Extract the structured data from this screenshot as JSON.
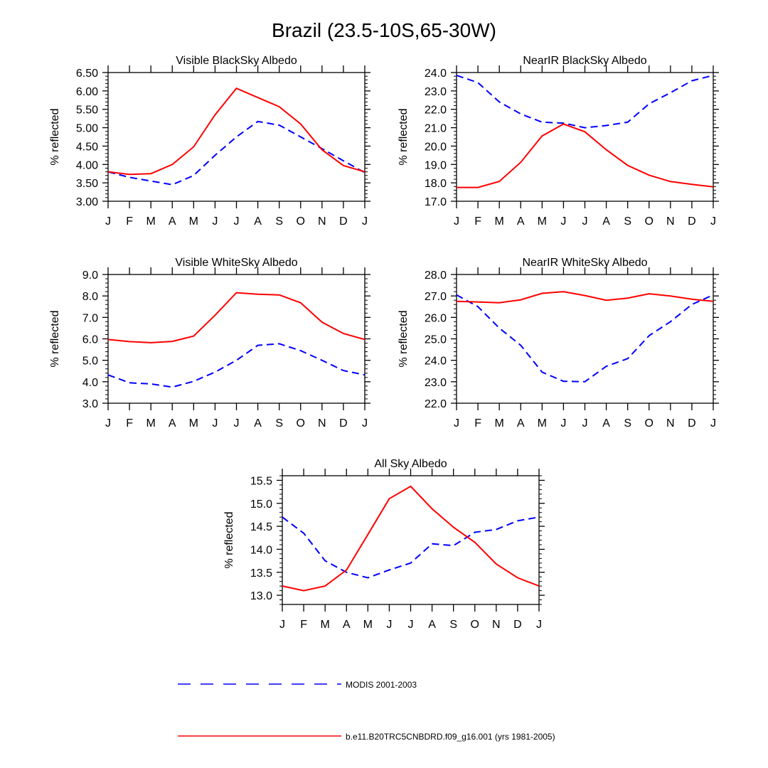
{
  "figure": {
    "title": "Brazil (23.5-10S,65-30W)",
    "legend": {
      "placement": "bottom",
      "entries": [
        {
          "label": "MODIS 2001-2003",
          "color": "#0000ff",
          "style": "dashed"
        },
        {
          "label": "b.e11.B20TRC5CNBDRD.f09_g16.001 (yrs 1981-2005)",
          "color": "#ff0000",
          "style": "solid"
        }
      ]
    }
  },
  "chart_data": [
    {
      "type": "line",
      "title": "Visible BlackSky Albedo",
      "xlabel": "",
      "ylabel": "% reflected",
      "categories": [
        "J",
        "F",
        "M",
        "A",
        "M",
        "J",
        "J",
        "A",
        "S",
        "O",
        "N",
        "D",
        "J"
      ],
      "ylim": [
        3.0,
        6.5
      ],
      "yticks": [
        "3.00",
        "3.50",
        "4.00",
        "4.50",
        "5.00",
        "5.50",
        "6.00",
        "6.50"
      ],
      "ytick_values": [
        3.0,
        3.5,
        4.0,
        4.5,
        5.0,
        5.5,
        6.0,
        6.5
      ],
      "series": [
        {
          "name": "MODIS 2001-2003",
          "color": "#0000ff",
          "dashed": true,
          "values": [
            3.8,
            3.65,
            3.55,
            3.45,
            3.7,
            4.25,
            4.75,
            5.17,
            5.07,
            4.75,
            4.43,
            4.1,
            3.78
          ]
        },
        {
          "name": "b.e11.B20TRC5CNBDRD.f09_g16.001 (yrs 1981-2005)",
          "color": "#ff0000",
          "dashed": false,
          "values": [
            3.8,
            3.73,
            3.75,
            4.0,
            4.48,
            5.35,
            6.07,
            5.82,
            5.57,
            5.1,
            4.4,
            3.97,
            3.8
          ]
        }
      ]
    },
    {
      "type": "line",
      "title": "NearIR BlackSky Albedo",
      "xlabel": "",
      "ylabel": "% reflected",
      "categories": [
        "J",
        "F",
        "M",
        "A",
        "M",
        "J",
        "J",
        "A",
        "S",
        "O",
        "N",
        "D",
        "J"
      ],
      "ylim": [
        17.0,
        24.0
      ],
      "yticks": [
        "17.0",
        "18.0",
        "19.0",
        "20.0",
        "21.0",
        "22.0",
        "23.0",
        "24.0"
      ],
      "ytick_values": [
        17,
        18,
        19,
        20,
        21,
        22,
        23,
        24
      ],
      "series": [
        {
          "name": "MODIS 2001-2003",
          "color": "#0000ff",
          "dashed": true,
          "values": [
            23.85,
            23.45,
            22.4,
            21.75,
            21.3,
            21.25,
            21.0,
            21.12,
            21.3,
            22.3,
            22.9,
            23.55,
            23.85
          ]
        },
        {
          "name": "b.e11.B20TRC5CNBDRD.f09_g16.001 (yrs 1981-2005)",
          "color": "#ff0000",
          "dashed": false,
          "values": [
            17.75,
            17.75,
            18.08,
            19.12,
            20.55,
            21.2,
            20.78,
            19.8,
            18.95,
            18.42,
            18.07,
            17.92,
            17.78
          ]
        }
      ]
    },
    {
      "type": "line",
      "title": "Visible WhiteSky Albedo",
      "xlabel": "",
      "ylabel": "% reflected",
      "categories": [
        "J",
        "F",
        "M",
        "A",
        "M",
        "J",
        "J",
        "A",
        "S",
        "O",
        "N",
        "D",
        "J"
      ],
      "ylim": [
        3.0,
        9.0
      ],
      "yticks": [
        "3.0",
        "4.0",
        "5.0",
        "6.0",
        "7.0",
        "8.0",
        "9.0"
      ],
      "ytick_values": [
        3,
        4,
        5,
        6,
        7,
        8,
        9
      ],
      "series": [
        {
          "name": "MODIS 2001-2003",
          "color": "#0000ff",
          "dashed": true,
          "values": [
            4.32,
            3.95,
            3.9,
            3.75,
            4.02,
            4.45,
            5.0,
            5.7,
            5.77,
            5.45,
            5.0,
            4.52,
            4.32
          ]
        },
        {
          "name": "b.e11.B20TRC5CNBDRD.f09_g16.001 (yrs 1981-2005)",
          "color": "#ff0000",
          "dashed": false,
          "values": [
            5.97,
            5.87,
            5.82,
            5.88,
            6.13,
            7.1,
            8.15,
            8.08,
            8.05,
            7.68,
            6.78,
            6.25,
            5.97
          ]
        }
      ]
    },
    {
      "type": "line",
      "title": "NearIR WhiteSky Albedo",
      "xlabel": "",
      "ylabel": "% reflected",
      "categories": [
        "J",
        "F",
        "M",
        "A",
        "M",
        "J",
        "J",
        "A",
        "S",
        "O",
        "N",
        "D",
        "J"
      ],
      "ylim": [
        22.0,
        28.0
      ],
      "yticks": [
        "22.0",
        "23.0",
        "24.0",
        "25.0",
        "26.0",
        "27.0",
        "28.0"
      ],
      "ytick_values": [
        22,
        23,
        24,
        25,
        26,
        27,
        28
      ],
      "series": [
        {
          "name": "MODIS 2001-2003",
          "color": "#0000ff",
          "dashed": true,
          "values": [
            27.05,
            26.5,
            25.5,
            24.7,
            23.45,
            23.02,
            23.0,
            23.72,
            24.08,
            25.15,
            25.8,
            26.6,
            27.05
          ]
        },
        {
          "name": "b.e11.B20TRC5CNBDRD.f09_g16.001 (yrs 1981-2005)",
          "color": "#ff0000",
          "dashed": false,
          "values": [
            26.75,
            26.72,
            26.68,
            26.82,
            27.12,
            27.2,
            27.02,
            26.8,
            26.9,
            27.1,
            27.0,
            26.85,
            26.75
          ]
        }
      ]
    },
    {
      "type": "line",
      "title": "All Sky Albedo",
      "xlabel": "",
      "ylabel": "% reflected",
      "categories": [
        "J",
        "F",
        "M",
        "A",
        "M",
        "J",
        "J",
        "A",
        "S",
        "O",
        "N",
        "D",
        "J"
      ],
      "ylim": [
        12.8,
        15.6
      ],
      "yticks": [
        "13.0",
        "13.5",
        "14.0",
        "14.5",
        "15.0",
        "15.5"
      ],
      "ytick_values": [
        13.0,
        13.5,
        14.0,
        14.5,
        15.0,
        15.5
      ],
      "series": [
        {
          "name": "MODIS 2001-2003",
          "color": "#0000ff",
          "dashed": true,
          "values": [
            14.7,
            14.35,
            13.75,
            13.5,
            13.38,
            13.55,
            13.7,
            14.12,
            14.08,
            14.37,
            14.43,
            14.62,
            14.7
          ]
        },
        {
          "name": "b.e11.B20TRC5CNBDRD.f09_g16.001 (yrs 1981-2005)",
          "color": "#ff0000",
          "dashed": false,
          "values": [
            13.2,
            13.1,
            13.2,
            13.55,
            14.32,
            15.1,
            15.37,
            14.88,
            14.48,
            14.15,
            13.68,
            13.38,
            13.2
          ]
        }
      ]
    }
  ]
}
